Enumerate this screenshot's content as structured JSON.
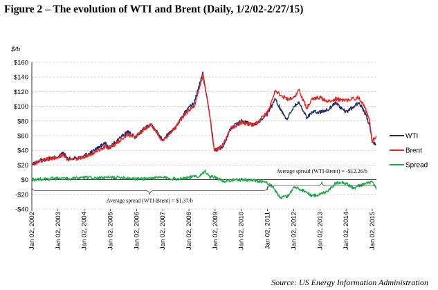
{
  "figure": {
    "title": "Figure 2 – The evolution of WTI and Brent (Daily, 1/2/02-2/27/15)",
    "source": "Source: US Energy Information Administration"
  },
  "colors": {
    "wti": "#1f2a6b",
    "brent": "#e52421",
    "spread": "#21a84a",
    "grid": "#b5b5b5",
    "axis": "#000000"
  },
  "chart_data": {
    "type": "line",
    "title": "The evolution of WTI and Brent (Daily, 1/2/02-2/27/15)",
    "unit_label": "$/b",
    "xlabel": "",
    "ylabel": "$/b",
    "ylim": [
      -40,
      160
    ],
    "xlim": [
      2002.0,
      2015.16
    ],
    "yticks": [
      -40,
      -20,
      0,
      20,
      40,
      60,
      80,
      100,
      120,
      140,
      160
    ],
    "ytick_labels": [
      "-$40",
      "-$20",
      "$0",
      "$20",
      "$40",
      "$60",
      "$80",
      "$100",
      "$120",
      "$140",
      "$160"
    ],
    "xticks": [
      2002,
      2003,
      2004,
      2005,
      2006,
      2007,
      2008,
      2009,
      2010,
      2011,
      2012,
      2013,
      2014,
      2015
    ],
    "xtick_labels": [
      "Jan 02, 2002",
      "Jan 02, 2003",
      "Jan 02, 2004",
      "Jan 02, 2005",
      "Jan 02, 2006",
      "Jan 02, 2007",
      "Jan 02, 2008",
      "Jan 02, 2009",
      "Jan 02, 2010",
      "Jan 02, 2011",
      "Jan 02, 2012",
      "Jan 02, 2013",
      "Jan 02, 2014",
      "Jan 02, 2015"
    ],
    "grid": true,
    "legend_position": "right",
    "series": [
      {
        "name": "WTI",
        "color_key": "wti",
        "x": [
          2002.0,
          2002.3,
          2002.6,
          2002.95,
          2003.2,
          2003.4,
          2003.9,
          2004.3,
          2004.8,
          2004.95,
          2005.3,
          2005.65,
          2005.95,
          2006.3,
          2006.55,
          2007.0,
          2007.5,
          2007.85,
          2008.2,
          2008.53,
          2008.75,
          2008.97,
          2009.3,
          2009.6,
          2010.0,
          2010.5,
          2011.0,
          2011.3,
          2011.5,
          2011.75,
          2012.0,
          2012.2,
          2012.5,
          2012.7,
          2013.0,
          2013.3,
          2013.6,
          2013.9,
          2014.0,
          2014.5,
          2014.7,
          2014.9,
          2015.0,
          2015.15
        ],
        "y": [
          20,
          26,
          28,
          31,
          36,
          28,
          31,
          38,
          50,
          43,
          55,
          65,
          58,
          70,
          76,
          55,
          72,
          92,
          105,
          145,
          100,
          40,
          45,
          70,
          80,
          75,
          89,
          110,
          96,
          82,
          100,
          105,
          85,
          92,
          92,
          95,
          105,
          95,
          92,
          105,
          92,
          75,
          50,
          48
        ]
      },
      {
        "name": "Brent",
        "color_key": "brent",
        "x": [
          2002.0,
          2002.3,
          2002.6,
          2002.95,
          2003.2,
          2003.4,
          2003.9,
          2004.3,
          2004.8,
          2004.95,
          2005.3,
          2005.65,
          2005.95,
          2006.3,
          2006.55,
          2007.0,
          2007.5,
          2007.85,
          2008.2,
          2008.53,
          2008.75,
          2008.97,
          2009.3,
          2009.6,
          2010.0,
          2010.5,
          2011.0,
          2011.3,
          2011.5,
          2011.75,
          2012.0,
          2012.2,
          2012.5,
          2012.7,
          2013.0,
          2013.3,
          2013.6,
          2013.9,
          2014.0,
          2014.5,
          2014.7,
          2014.9,
          2015.0,
          2015.15
        ],
        "y": [
          20,
          25,
          28,
          30,
          34,
          26,
          30,
          35,
          45,
          42,
          52,
          62,
          58,
          69,
          75,
          53,
          72,
          90,
          100,
          142,
          100,
          38,
          48,
          70,
          78,
          74,
          92,
          122,
          115,
          110,
          112,
          122,
          98,
          110,
          112,
          106,
          110,
          108,
          108,
          112,
          100,
          80,
          52,
          60
        ]
      },
      {
        "name": "Spread",
        "color_key": "spread",
        "x": [
          2002.0,
          2002.5,
          2003.0,
          2003.5,
          2004.0,
          2004.5,
          2005.0,
          2005.5,
          2006.0,
          2006.5,
          2007.0,
          2007.5,
          2008.0,
          2008.4,
          2008.6,
          2008.8,
          2008.97,
          2009.3,
          2009.6,
          2010.0,
          2010.5,
          2010.9,
          2011.0,
          2011.2,
          2011.5,
          2011.8,
          2012.0,
          2012.4,
          2012.7,
          2013.0,
          2013.3,
          2013.6,
          2013.8,
          2014.0,
          2014.3,
          2014.5,
          2014.8,
          2015.0,
          2015.15
        ],
        "y": [
          0,
          1,
          2,
          1,
          3,
          2,
          3,
          3,
          1,
          2,
          3,
          1,
          3,
          5,
          12,
          3,
          4,
          -2,
          -1,
          0,
          -1,
          -3,
          -5,
          -10,
          -25,
          -22,
          -10,
          -15,
          -22,
          -20,
          -15,
          -5,
          -3,
          -5,
          -12,
          -8,
          -5,
          -3,
          -12
        ]
      }
    ],
    "annotations": [
      {
        "text": "Average spread (WTI-Brent) = -$12.26/b",
        "x_from": 2011.0,
        "x_to": 2015.15,
        "y_bracket": -8,
        "side": "above"
      },
      {
        "text": "Average spread (WTI-Brent) = $1.37/b",
        "x_from": 2002.0,
        "x_to": 2011.0,
        "y_bracket": -15,
        "side": "below"
      }
    ]
  }
}
